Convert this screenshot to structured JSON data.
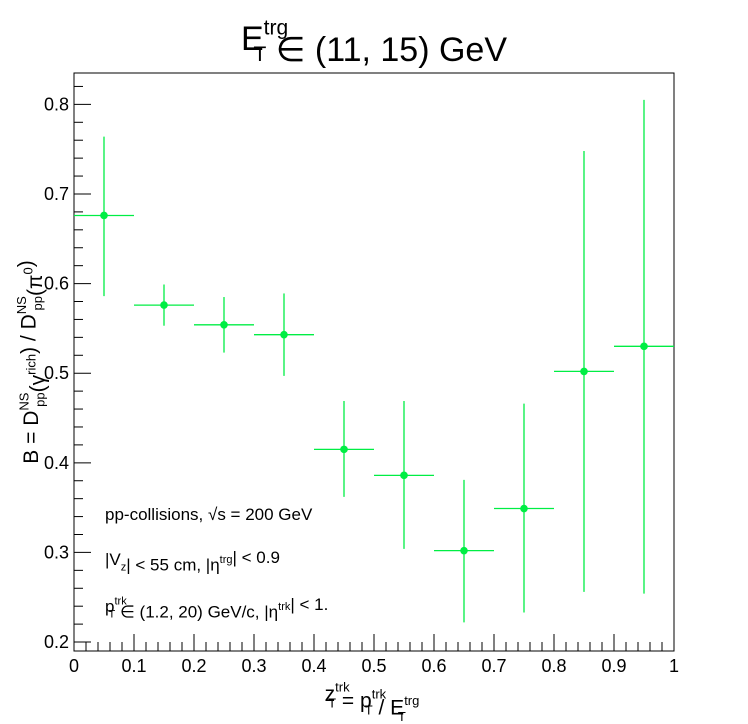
{
  "chart_data": {
    "type": "scatter",
    "title": {
      "base": "E",
      "sup": "trg",
      "sub": "T",
      "rest": " ∈ (11, 15) GeV"
    },
    "xlabel": {
      "parts": [
        {
          "t": "z",
          "sup": "trk",
          "sub": "T"
        },
        {
          "t": " = p",
          "sup": "trk",
          "sub": "T"
        },
        {
          "t": " / E",
          "sup": "trg",
          "sub": "T"
        }
      ]
    },
    "ylabel": {
      "parts": [
        {
          "t": "B = D",
          "sup": "NS",
          "sub": "pp"
        },
        {
          "t": "(γ",
          "sup": "rich",
          "sub": ""
        },
        {
          "t": ") / D",
          "sup": "NS",
          "sub": "pp"
        },
        {
          "t": "(π",
          "sup": "0",
          "sub": ""
        },
        {
          "t": ")",
          "sup": "",
          "sub": ""
        }
      ]
    },
    "xlim": [
      0,
      1
    ],
    "ylim": [
      0.19,
      0.835
    ],
    "xticks": [
      0,
      0.1,
      0.2,
      0.3,
      0.4,
      0.5,
      0.6,
      0.7,
      0.8,
      0.9,
      1
    ],
    "xtick_labels": [
      "0",
      "0.1",
      "0.2",
      "0.3",
      "0.4",
      "0.5",
      "0.6",
      "0.7",
      "0.8",
      "0.9",
      "1"
    ],
    "yticks": [
      0.2,
      0.3,
      0.4,
      0.5,
      0.6,
      0.7,
      0.8
    ],
    "ytick_labels": [
      "0.2",
      "0.3",
      "0.4",
      "0.5",
      "0.6",
      "0.7",
      "0.8"
    ],
    "series": [
      {
        "color": "#00ee44",
        "points": [
          {
            "x": 0.05,
            "y": 0.676,
            "xerr": 0.05,
            "ylow": 0.586,
            "yhigh": 0.764
          },
          {
            "x": 0.15,
            "y": 0.576,
            "xerr": 0.05,
            "ylow": 0.553,
            "yhigh": 0.599
          },
          {
            "x": 0.25,
            "y": 0.554,
            "xerr": 0.05,
            "ylow": 0.523,
            "yhigh": 0.585
          },
          {
            "x": 0.35,
            "y": 0.543,
            "xerr": 0.05,
            "ylow": 0.497,
            "yhigh": 0.589
          },
          {
            "x": 0.45,
            "y": 0.415,
            "xerr": 0.05,
            "ylow": 0.362,
            "yhigh": 0.469
          },
          {
            "x": 0.55,
            "y": 0.386,
            "xerr": 0.05,
            "ylow": 0.304,
            "yhigh": 0.469
          },
          {
            "x": 0.65,
            "y": 0.302,
            "xerr": 0.05,
            "ylow": 0.222,
            "yhigh": 0.381
          },
          {
            "x": 0.75,
            "y": 0.349,
            "xerr": 0.05,
            "ylow": 0.233,
            "yhigh": 0.466
          },
          {
            "x": 0.85,
            "y": 0.502,
            "xerr": 0.05,
            "ylow": 0.256,
            "yhigh": 0.748
          },
          {
            "x": 0.95,
            "y": 0.53,
            "xerr": 0.05,
            "ylow": 0.254,
            "yhigh": 0.805
          }
        ]
      }
    ],
    "annotations": [
      {
        "id": "collisions",
        "parts": [
          {
            "t": "pp-collisions, √s = 200 GeV"
          }
        ]
      },
      {
        "id": "vz-eta",
        "parts": [
          {
            "t": "|V",
            "sub": "z"
          },
          {
            "t": "| < 55 cm, |η",
            "sup": "trg"
          },
          {
            "t": "| < 0.9"
          }
        ]
      },
      {
        "id": "pt-eta",
        "parts": [
          {
            "t": "p",
            "sup": "trk",
            "sub": "T"
          },
          {
            "t": " ∈ (1.2, 20) GeV/c, |η",
            "sup": "trk"
          },
          {
            "t": "| < 1."
          }
        ]
      }
    ],
    "grid": false,
    "legend": "none"
  }
}
